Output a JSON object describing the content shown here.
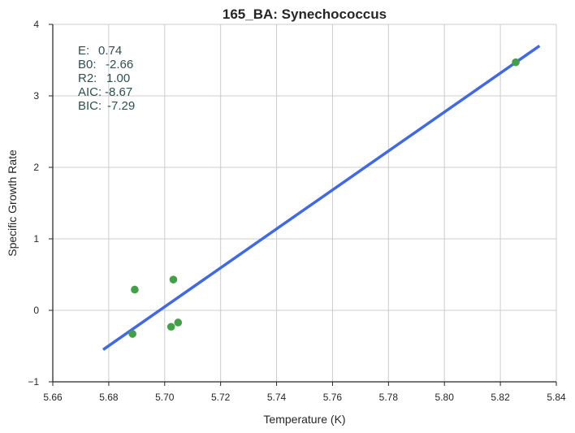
{
  "chart_data": {
    "type": "scatter",
    "title": "165_BA: Synechococcus",
    "xlabel": "Temperature (K)",
    "ylabel": "Specific Growth Rate",
    "xlim": [
      5.66,
      5.84
    ],
    "ylim": [
      -1,
      4
    ],
    "x_ticks": [
      "5.66",
      "5.68",
      "5.70",
      "5.72",
      "5.74",
      "5.76",
      "5.78",
      "5.80",
      "5.82",
      "5.84"
    ],
    "y_ticks": [
      "−1",
      "0",
      "1",
      "2",
      "3",
      "4"
    ],
    "grid": true,
    "points": [
      {
        "x": 5.6885,
        "y": -0.33
      },
      {
        "x": 5.6893,
        "y": 0.29
      },
      {
        "x": 5.7023,
        "y": -0.23
      },
      {
        "x": 5.7031,
        "y": 0.43
      },
      {
        "x": 5.7048,
        "y": -0.17
      },
      {
        "x": 5.8255,
        "y": 3.47
      }
    ],
    "fit_line": {
      "x": [
        5.678,
        5.834
      ],
      "y": [
        -0.55,
        3.7
      ]
    },
    "colors": {
      "points": "#44a048",
      "line": "#4169e1",
      "annotation": "#2f4f4f"
    },
    "annotation": [
      {
        "label": "E:",
        "value": "0.74"
      },
      {
        "label": "B0:",
        "value": "-2.66"
      },
      {
        "label": "R2:",
        "value": "1.00"
      },
      {
        "label": "AIC:",
        "value": "-8.67"
      },
      {
        "label": "BIC:",
        "value": "-7.29"
      }
    ]
  }
}
